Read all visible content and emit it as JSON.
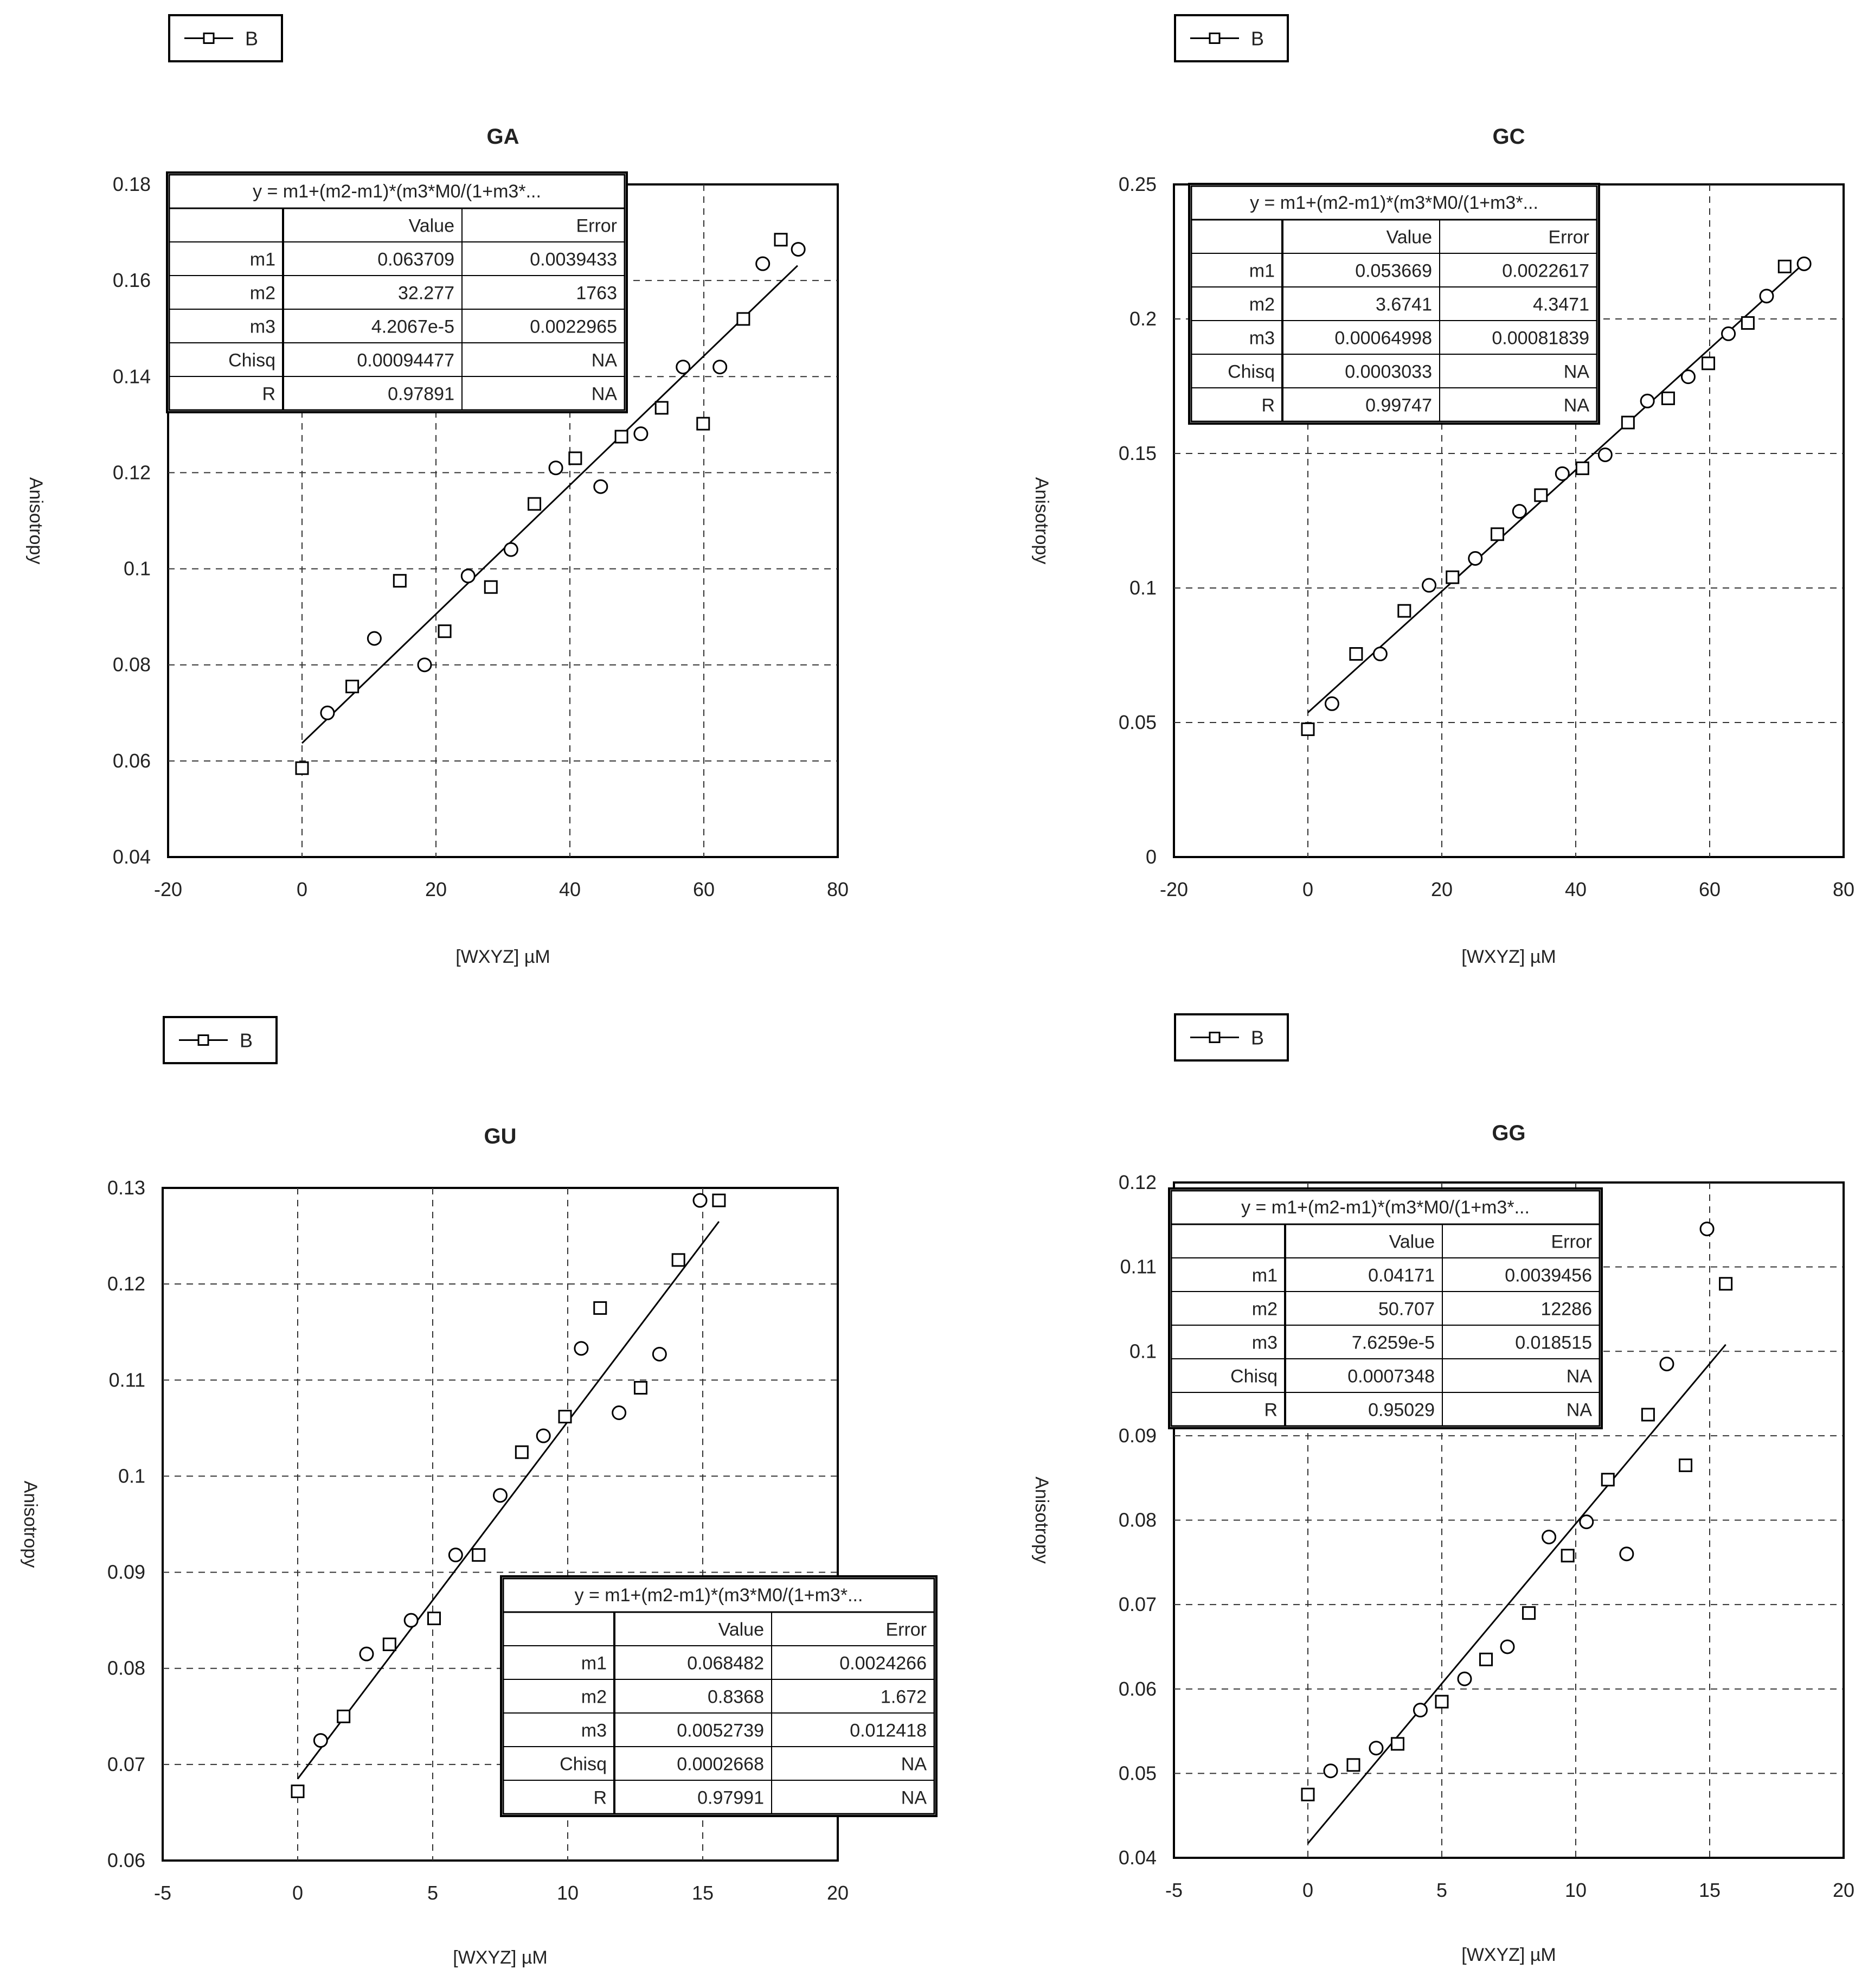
{
  "figure": {
    "y_axis_label": "Anisotropy",
    "x_axis_label": "[WXYZ] µM"
  },
  "chart_data": [
    {
      "type": "scatter",
      "title": "GA",
      "legend": {
        "label": "B",
        "placement": "top-left-outside"
      },
      "xlim": [
        -20,
        80
      ],
      "ylim": [
        0.04,
        0.18
      ],
      "xticks": [
        "-20",
        "0",
        "20",
        "40",
        "60",
        "80"
      ],
      "yticks": [
        "0.04",
        "0.06",
        "0.08",
        "0.1",
        "0.12",
        "0.14",
        "0.16",
        "0.18"
      ],
      "grid": true,
      "series": [
        {
          "name": "B",
          "points": [
            [
              0,
              0.0585
            ],
            [
              3.8,
              0.07
            ],
            [
              7.5,
              0.0755
            ],
            [
              10.8,
              0.0855
            ],
            [
              14.6,
              0.0975
            ],
            [
              18.3,
              0.08
            ],
            [
              21.3,
              0.087
            ],
            [
              24.8,
              0.0985
            ],
            [
              28.2,
              0.0962
            ],
            [
              31.2,
              0.104
            ],
            [
              34.7,
              0.1135
            ],
            [
              37.9,
              0.121
            ],
            [
              40.8,
              0.123
            ],
            [
              44.6,
              0.1171
            ],
            [
              47.7,
              0.1275
            ],
            [
              50.6,
              0.1281
            ],
            [
              53.7,
              0.1335
            ],
            [
              56.9,
              0.142
            ],
            [
              59.9,
              0.1302
            ],
            [
              62.4,
              0.142
            ],
            [
              65.9,
              0.152
            ],
            [
              68.8,
              0.1635
            ],
            [
              71.5,
              0.1685
            ],
            [
              74.1,
              0.1665
            ]
          ]
        }
      ],
      "fit_line": [
        [
          0,
          0.0637
        ],
        [
          74,
          0.1631
        ]
      ],
      "fit_table": {
        "equation": "y = m1+(m2-m1)*(m3*M0/(1+m3*...",
        "headers": [
          "",
          "Value",
          "Error"
        ],
        "rows": [
          [
            "m1",
            "0.063709",
            "0.0039433"
          ],
          [
            "m2",
            "32.277",
            "1763"
          ],
          [
            "m3",
            "4.2067e-5",
            "0.0022965"
          ],
          [
            "Chisq",
            "0.00094477",
            "NA"
          ],
          [
            "R",
            "0.97891",
            "NA"
          ]
        ],
        "placement": "top-left"
      }
    },
    {
      "type": "scatter",
      "title": "GC",
      "legend": {
        "label": "B",
        "placement": "top-left-outside"
      },
      "xlim": [
        -20,
        80
      ],
      "ylim": [
        0,
        0.25
      ],
      "xticks": [
        "-20",
        "0",
        "20",
        "40",
        "60",
        "80"
      ],
      "yticks": [
        "0",
        "0.05",
        "0.1",
        "0.15",
        "0.2",
        "0.25"
      ],
      "grid": true,
      "series": [
        {
          "name": "B",
          "points": [
            [
              0,
              0.0475
            ],
            [
              3.6,
              0.057
            ],
            [
              7.2,
              0.0755
            ],
            [
              10.8,
              0.0755
            ],
            [
              14.4,
              0.0915
            ],
            [
              18.1,
              0.101
            ],
            [
              21.6,
              0.104
            ],
            [
              25.0,
              0.111
            ],
            [
              28.3,
              0.12
            ],
            [
              31.6,
              0.1285
            ],
            [
              34.8,
              0.1345
            ],
            [
              38.0,
              0.1425
            ],
            [
              41.0,
              0.1445
            ],
            [
              44.4,
              0.1495
            ],
            [
              47.8,
              0.1615
            ],
            [
              50.7,
              0.1695
            ],
            [
              53.8,
              0.1705
            ],
            [
              56.8,
              0.1785
            ],
            [
              59.8,
              0.1835
            ],
            [
              62.8,
              0.1945
            ],
            [
              65.7,
              0.1985
            ],
            [
              68.5,
              0.2085
            ],
            [
              71.2,
              0.2195
            ],
            [
              74.1,
              0.2205
            ]
          ]
        }
      ],
      "fit_line": [
        [
          0,
          0.0537
        ],
        [
          74,
          0.2205
        ]
      ],
      "fit_table": {
        "equation": "y = m1+(m2-m1)*(m3*M0/(1+m3*...",
        "headers": [
          "",
          "Value",
          "Error"
        ],
        "rows": [
          [
            "m1",
            "0.053669",
            "0.0022617"
          ],
          [
            "m2",
            "3.6741",
            "4.3471"
          ],
          [
            "m3",
            "0.00064998",
            "0.00081839"
          ],
          [
            "Chisq",
            "0.0003033",
            "NA"
          ],
          [
            "R",
            "0.99747",
            "NA"
          ]
        ],
        "placement": "top-left"
      }
    },
    {
      "type": "scatter",
      "title": "GU",
      "legend": {
        "label": "B",
        "placement": "top-left-outside"
      },
      "xlim": [
        -5,
        20
      ],
      "ylim": [
        0.06,
        0.13
      ],
      "xticks": [
        "-5",
        "0",
        "5",
        "10",
        "15",
        "20"
      ],
      "yticks": [
        "0.06",
        "0.07",
        "0.08",
        "0.09",
        "0.1",
        "0.11",
        "0.12",
        "0.13"
      ],
      "grid": true,
      "series": [
        {
          "name": "B",
          "points": [
            [
              0,
              0.0672
            ],
            [
              0.85,
              0.0725
            ],
            [
              1.7,
              0.075
            ],
            [
              2.55,
              0.0815
            ],
            [
              3.4,
              0.0825
            ],
            [
              4.2,
              0.085
            ],
            [
              5.05,
              0.0852
            ],
            [
              5.85,
              0.0918
            ],
            [
              6.7,
              0.0918
            ],
            [
              7.5,
              0.098
            ],
            [
              8.3,
              0.1025
            ],
            [
              9.1,
              0.1042
            ],
            [
              9.9,
              0.1062
            ],
            [
              10.5,
              0.1133
            ],
            [
              11.2,
              0.1175
            ],
            [
              11.9,
              0.1066
            ],
            [
              12.7,
              0.1092
            ],
            [
              13.4,
              0.1127
            ],
            [
              14.1,
              0.1225
            ],
            [
              14.9,
              0.1287
            ],
            [
              15.6,
              0.1287
            ]
          ]
        }
      ],
      "fit_line": [
        [
          0,
          0.0685
        ],
        [
          15.6,
          0.1265
        ]
      ],
      "fit_table": {
        "equation": "y = m1+(m2-m1)*(m3*M0/(1+m3*...",
        "headers": [
          "",
          "Value",
          "Error"
        ],
        "rows": [
          [
            "m1",
            "0.068482",
            "0.0024266"
          ],
          [
            "m2",
            "0.8368",
            "1.672"
          ],
          [
            "m3",
            "0.0052739",
            "0.012418"
          ],
          [
            "Chisq",
            "0.0002668",
            "NA"
          ],
          [
            "R",
            "0.97991",
            "NA"
          ]
        ],
        "placement": "bottom-right"
      }
    },
    {
      "type": "scatter",
      "title": "GG",
      "legend": {
        "label": "B",
        "placement": "top-left-outside"
      },
      "xlim": [
        -5,
        20
      ],
      "ylim": [
        0.04,
        0.12
      ],
      "xticks": [
        "-5",
        "0",
        "5",
        "10",
        "15",
        "20"
      ],
      "yticks": [
        "0.04",
        "0.05",
        "0.06",
        "0.07",
        "0.08",
        "0.09",
        "0.1",
        "0.11",
        "0.12"
      ],
      "grid": true,
      "series": [
        {
          "name": "B",
          "points": [
            [
              0,
              0.0475
            ],
            [
              0.85,
              0.0503
            ],
            [
              1.7,
              0.051
            ],
            [
              2.55,
              0.053
            ],
            [
              3.35,
              0.0535
            ],
            [
              4.2,
              0.0575
            ],
            [
              5.0,
              0.0585
            ],
            [
              5.85,
              0.0612
            ],
            [
              6.65,
              0.0635
            ],
            [
              7.45,
              0.065
            ],
            [
              8.25,
              0.069
            ],
            [
              9.0,
              0.078
            ],
            [
              9.7,
              0.0758
            ],
            [
              10.4,
              0.0798
            ],
            [
              11.2,
              0.0848
            ],
            [
              11.9,
              0.076
            ],
            [
              12.7,
              0.0925
            ],
            [
              13.4,
              0.0985
            ],
            [
              14.1,
              0.0865
            ],
            [
              14.9,
              0.1145
            ],
            [
              15.6,
              0.108
            ]
          ]
        }
      ],
      "fit_line": [
        [
          0,
          0.0417
        ],
        [
          15.6,
          0.1008
        ]
      ],
      "fit_table": {
        "equation": "y = m1+(m2-m1)*(m3*M0/(1+m3*...",
        "headers": [
          "",
          "Value",
          "Error"
        ],
        "rows": [
          [
            "m1",
            "0.04171",
            "0.0039456"
          ],
          [
            "m2",
            "50.707",
            "12286"
          ],
          [
            "m3",
            "7.6259e-5",
            "0.018515"
          ],
          [
            "Chisq",
            "0.0007348",
            "NA"
          ],
          [
            "R",
            "0.95029",
            "NA"
          ]
        ],
        "placement": "top-left"
      }
    }
  ]
}
